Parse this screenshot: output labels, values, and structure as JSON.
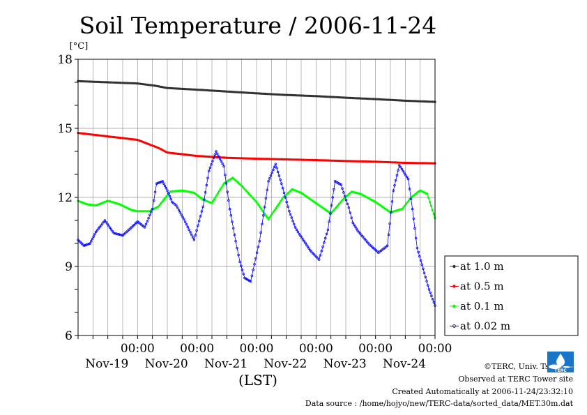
{
  "chart_data": {
    "type": "line",
    "title": "Soil Temperature / 2006-11-24",
    "ylabel": "[°C]",
    "xlabel": "(LST)",
    "ylim": [
      6,
      18
    ],
    "yticks": [
      6,
      9,
      12,
      15,
      18
    ],
    "xlim": [
      -1.0,
      5.0
    ],
    "xtick_time_label": "00:00",
    "xtick_positions": [
      0,
      1,
      2,
      3,
      4,
      5
    ],
    "date_labels": [
      "Nov-19",
      "Nov-20",
      "Nov-21",
      "Nov-22",
      "Nov-23",
      "Nov-24"
    ],
    "grid": true,
    "legend_position": "right-bottom",
    "series": [
      {
        "name": "at 1.0 m",
        "color": "#333333",
        "marker": "dot",
        "x": [
          -1.0,
          -0.5,
          0.0,
          0.3,
          0.5,
          1.0,
          1.5,
          2.0,
          2.5,
          3.0,
          3.5,
          4.0,
          4.5,
          5.0
        ],
        "y": [
          17.05,
          17.0,
          16.95,
          16.85,
          16.75,
          16.68,
          16.6,
          16.52,
          16.45,
          16.4,
          16.33,
          16.27,
          16.2,
          16.15
        ]
      },
      {
        "name": "at 0.5 m",
        "color": "#ff0000",
        "marker": "dot",
        "x": [
          -1.0,
          -0.5,
          0.0,
          0.2,
          0.35,
          0.5,
          1.0,
          1.5,
          2.0,
          2.5,
          3.0,
          3.5,
          4.0,
          4.5,
          5.0
        ],
        "y": [
          14.8,
          14.65,
          14.5,
          14.3,
          14.15,
          13.95,
          13.8,
          13.72,
          13.68,
          13.65,
          13.62,
          13.58,
          13.55,
          13.5,
          13.48
        ]
      },
      {
        "name": "at 0.1 m",
        "color": "#00ff00",
        "marker": "dot",
        "x": [
          -1.0,
          -0.85,
          -0.7,
          -0.5,
          -0.3,
          -0.1,
          0.0,
          0.2,
          0.35,
          0.55,
          0.75,
          0.95,
          1.1,
          1.25,
          1.45,
          1.6,
          1.75,
          2.0,
          2.2,
          2.45,
          2.6,
          2.75,
          3.0,
          3.25,
          3.45,
          3.6,
          3.75,
          4.0,
          4.25,
          4.45,
          4.6,
          4.75,
          4.87,
          5.0
        ],
        "y": [
          11.85,
          11.7,
          11.65,
          11.85,
          11.7,
          11.45,
          11.4,
          11.4,
          11.6,
          12.25,
          12.3,
          12.2,
          11.9,
          11.75,
          12.6,
          12.85,
          12.5,
          11.8,
          11.05,
          12.0,
          12.35,
          12.2,
          11.75,
          11.3,
          11.9,
          12.25,
          12.15,
          11.8,
          11.35,
          11.5,
          12.0,
          12.3,
          12.15,
          11.1
        ]
      },
      {
        "name": "at 0.02 m",
        "color": "#0000ff",
        "marker": "circle",
        "x": [
          -1.0,
          -0.9,
          -0.8,
          -0.7,
          -0.55,
          -0.4,
          -0.25,
          -0.1,
          0.0,
          0.12,
          0.25,
          0.32,
          0.42,
          0.5,
          0.58,
          0.65,
          0.78,
          0.95,
          1.1,
          1.2,
          1.32,
          1.45,
          1.55,
          1.65,
          1.72,
          1.8,
          1.9,
          2.05,
          2.2,
          2.32,
          2.42,
          2.55,
          2.65,
          2.72,
          2.8,
          2.9,
          3.05,
          3.2,
          3.32,
          3.42,
          3.55,
          3.62,
          3.7,
          3.8,
          3.9,
          4.05,
          4.2,
          4.3,
          4.4,
          4.55,
          4.62,
          4.7,
          4.8,
          4.9,
          5.0
        ],
        "y": [
          10.15,
          9.9,
          10.0,
          10.5,
          11.0,
          10.45,
          10.35,
          10.7,
          10.95,
          10.7,
          11.5,
          12.6,
          12.7,
          12.3,
          11.8,
          11.65,
          11.05,
          10.15,
          11.6,
          13.15,
          14.0,
          13.35,
          11.5,
          10.1,
          9.2,
          8.5,
          8.35,
          10.1,
          12.7,
          13.45,
          12.6,
          11.4,
          10.7,
          10.4,
          10.1,
          9.7,
          9.3,
          10.6,
          12.7,
          12.55,
          11.55,
          10.9,
          10.55,
          10.25,
          9.95,
          9.6,
          9.9,
          12.3,
          13.4,
          12.8,
          11.5,
          9.8,
          8.9,
          8.0,
          7.3
        ]
      }
    ]
  },
  "footer": {
    "copyright": "©TERC, Univ. Tsukuba",
    "observed": "Observed at TERC Tower site",
    "created": "Created Automatically at 2006-11-24/23:32:10",
    "source": "Data source : /home/hojyo/new/TERC-data/sorted_data/MET.30m.dat"
  },
  "logo": {
    "text": "TERC",
    "color": "#1a74c8"
  }
}
